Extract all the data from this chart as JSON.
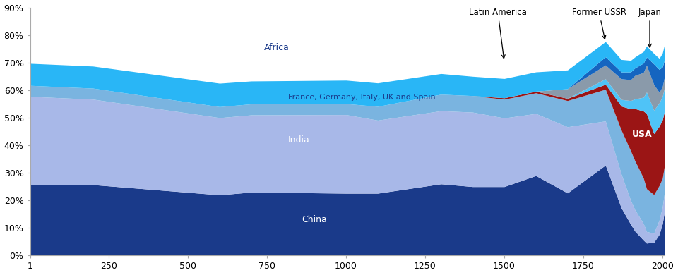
{
  "xlim": [
    1,
    2008
  ],
  "ylim": [
    0,
    0.9
  ],
  "yticks": [
    0,
    0.1,
    0.2,
    0.3,
    0.4,
    0.5,
    0.6,
    0.7,
    0.8,
    0.9
  ],
  "ytick_labels": [
    "0%",
    "10%",
    "20%",
    "30%",
    "40%",
    "50%",
    "60%",
    "70%",
    "80%",
    "90%"
  ],
  "xticks": [
    1,
    250,
    500,
    750,
    1000,
    1250,
    1500,
    1750,
    2000
  ],
  "xtick_labels": [
    "1",
    "250",
    "500",
    "750",
    "1000",
    "1250",
    "1500",
    "1750",
    "2000"
  ],
  "years": [
    1,
    200,
    600,
    700,
    1000,
    1100,
    1300,
    1400,
    1500,
    1600,
    1700,
    1820,
    1870,
    1900,
    1913,
    1940,
    1950,
    1973,
    1990,
    2000,
    2008
  ],
  "china": [
    0.257,
    0.257,
    0.22,
    0.23,
    0.226,
    0.226,
    0.26,
    0.25,
    0.25,
    0.29,
    0.227,
    0.328,
    0.173,
    0.113,
    0.089,
    0.056,
    0.045,
    0.048,
    0.077,
    0.115,
    0.17
  ],
  "india": [
    0.32,
    0.31,
    0.28,
    0.28,
    0.285,
    0.265,
    0.265,
    0.27,
    0.249,
    0.225,
    0.24,
    0.16,
    0.122,
    0.086,
    0.077,
    0.06,
    0.042,
    0.033,
    0.052,
    0.06,
    0.07
  ],
  "france_etc": [
    0.04,
    0.04,
    0.04,
    0.04,
    0.04,
    0.05,
    0.06,
    0.06,
    0.068,
    0.075,
    0.095,
    0.115,
    0.16,
    0.18,
    0.178,
    0.165,
    0.155,
    0.14,
    0.125,
    0.105,
    0.095
  ],
  "usa": [
    0.0,
    0.0,
    0.0,
    0.0,
    0.0,
    0.0,
    0.0,
    0.0,
    0.005,
    0.006,
    0.008,
    0.018,
    0.087,
    0.153,
    0.189,
    0.243,
    0.273,
    0.221,
    0.215,
    0.212,
    0.195
  ],
  "latin_america": [
    0.0,
    0.0,
    0.0,
    0.0,
    0.0,
    0.0,
    0.0,
    0.0,
    0.0,
    0.0,
    0.0,
    0.02,
    0.024,
    0.03,
    0.035,
    0.05,
    0.078,
    0.085,
    0.085,
    0.085,
    0.085
  ],
  "former_ussr": [
    0.0,
    0.0,
    0.0,
    0.0,
    0.0,
    0.0,
    0.0,
    0.0,
    0.0,
    0.0,
    0.035,
    0.05,
    0.075,
    0.076,
    0.085,
    0.09,
    0.097,
    0.093,
    0.038,
    0.035,
    0.04
  ],
  "japan": [
    0.0,
    0.0,
    0.0,
    0.0,
    0.0,
    0.0,
    0.0,
    0.0,
    0.0,
    0.0,
    0.0,
    0.03,
    0.025,
    0.028,
    0.027,
    0.034,
    0.03,
    0.075,
    0.083,
    0.072,
    0.06
  ],
  "africa": [
    0.08,
    0.08,
    0.085,
    0.083,
    0.085,
    0.085,
    0.075,
    0.07,
    0.07,
    0.07,
    0.068,
    0.055,
    0.045,
    0.042,
    0.04,
    0.042,
    0.04,
    0.038,
    0.04,
    0.05,
    0.055
  ],
  "colors": {
    "china": "#1a3a8a",
    "india": "#a8b8e8",
    "france_etc": "#7ab4e0",
    "usa": "#9b1515",
    "latin_america": "#4fc3f7",
    "former_ussr": "#8a9aaa",
    "japan": "#1565c0",
    "africa": "#29b6f6"
  },
  "bg_color": "#ffffff",
  "label_france": "France, Germany, Italy, UK and Spain",
  "label_latin": "Latin America",
  "label_ussr": "Former USSR",
  "label_japan": "Japan",
  "label_africa": "Africa"
}
